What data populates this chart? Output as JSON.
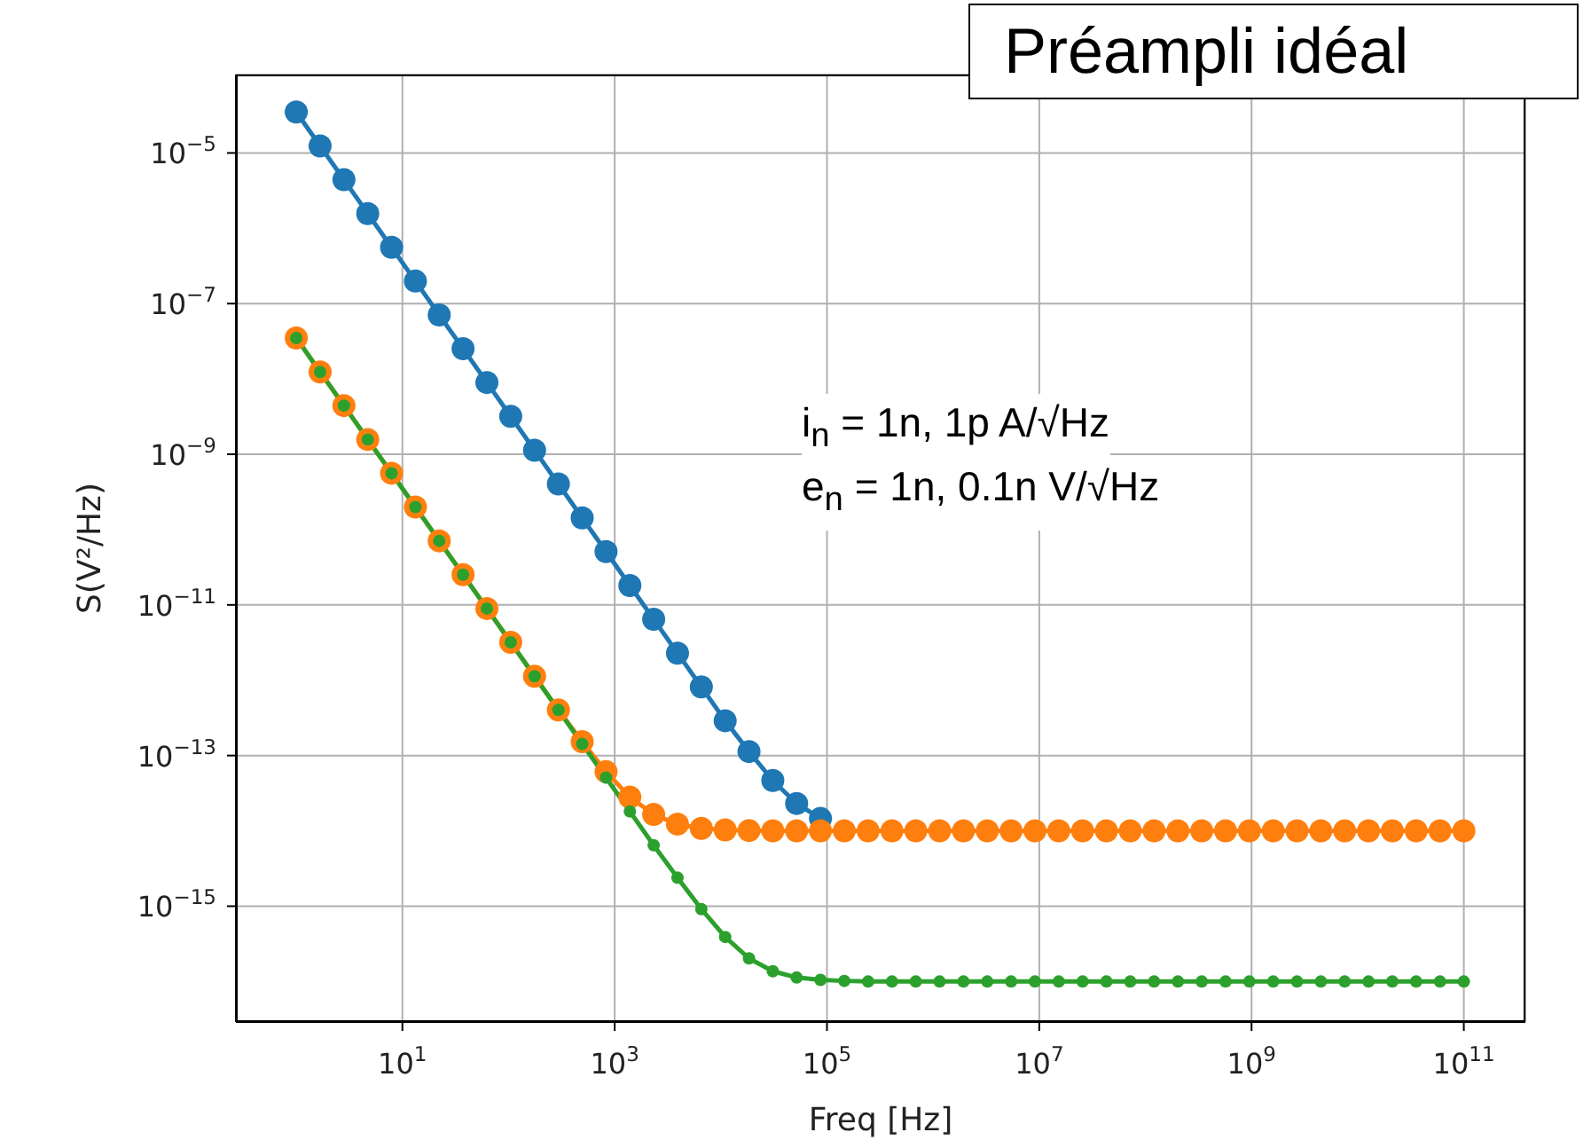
{
  "chart_data": {
    "type": "line",
    "xlabel": "Freq [Hz]",
    "ylabel": "S(V²/Hz)",
    "log": "xy",
    "grid": true,
    "marker": "circle",
    "line_style": "solid",
    "annotations": [
      "Préampli idéal",
      "i$_{n}$ = 1n, 1p A/√Hz",
      "e$_{n}$ = 1n, 0.1n V/√Hz"
    ],
    "xlim": [
      0.27,
      380000000000.0
    ],
    "ylim": [
      2.9e-17,
      0.00011
    ],
    "xticks": [
      {
        "value": 10,
        "label": "10$^{1}$"
      },
      {
        "value": 1000,
        "label": "10$^{3}$"
      },
      {
        "value": 100000,
        "label": "10$^{5}$"
      },
      {
        "value": 10000000,
        "label": "10$^{7}$"
      },
      {
        "value": 1000000000,
        "label": "10$^{9}$"
      },
      {
        "value": 100000000000,
        "label": "10$^{11}$"
      }
    ],
    "yticks": [
      {
        "value": 1e-05,
        "label": "10$^{−5}$"
      },
      {
        "value": 1e-07,
        "label": "10$^{−7}$"
      },
      {
        "value": 1e-09,
        "label": "10$^{−9}$"
      },
      {
        "value": 1e-11,
        "label": "10$^{−11}$"
      },
      {
        "value": 1e-13,
        "label": "10$^{−13}$"
      },
      {
        "value": 1e-15,
        "label": "10$^{−15}$"
      }
    ],
    "x": [
      1,
      1.677,
      2.812,
      4.715,
      7.907,
      13.26,
      22.23,
      37.28,
      62.51,
      104.8,
      175.8,
      294.8,
      494.2,
      828.8,
      1390,
      2330,
      3907,
      6551,
      10985,
      18421,
      30888,
      51795,
      86851,
      145600,
      244200,
      409500,
      686600,
      1151000,
      1931000,
      3237000,
      5429000,
      9103000,
      15260000,
      25600000,
      42920000,
      71970000,
      120700000,
      202400000,
      339300000,
      569000000,
      954100000,
      1600000000,
      2683000000,
      4498000000,
      7543000000,
      12650000000,
      21210000000,
      35560000000,
      59630000000,
      100000000000
    ],
    "series": [
      {
        "color": "#1f77b4",
        "values": [
          3.5e-05,
          1.24e-05,
          4.43e-06,
          1.57e-06,
          5.6e-07,
          1.99e-07,
          7.08e-08,
          2.52e-08,
          8.96e-09,
          3.19e-09,
          1.13e-09,
          4.03e-10,
          1.43e-10,
          5.1e-11,
          1.81e-11,
          6.45e-12,
          2.29e-12,
          8.16e-13,
          2.9e-13,
          1.13e-13,
          4.67e-14,
          2.31e-14,
          1.46e-14,
          null,
          null,
          null,
          null,
          null,
          null,
          null,
          null,
          null,
          null,
          null,
          null,
          null,
          null,
          null,
          null,
          null,
          null,
          null,
          null,
          null,
          null,
          null,
          null,
          null,
          null,
          null
        ]
      },
      {
        "color": "#ff7f0e",
        "values": [
          3.5e-08,
          1.24e-08,
          4.43e-09,
          1.57e-09,
          5.6e-10,
          1.99e-10,
          7.08e-11,
          2.52e-11,
          8.96e-12,
          3.19e-12,
          1.13e-12,
          4.03e-13,
          1.53e-13,
          6.1e-14,
          2.81e-14,
          1.65e-14,
          1.23e-14,
          1.08e-14,
          1.03e-14,
          1.01e-14,
          1e-14,
          1e-14,
          1e-14,
          1e-14,
          1e-14,
          1e-14,
          1e-14,
          1e-14,
          1e-14,
          1e-14,
          1e-14,
          1e-14,
          1e-14,
          1e-14,
          1e-14,
          1e-14,
          1e-14,
          1e-14,
          1e-14,
          1e-14,
          1e-14,
          1e-14,
          1e-14,
          1e-14,
          1e-14,
          1e-14,
          1e-14,
          1e-14,
          1e-14,
          1e-14
        ]
      },
      {
        "color": "#2ca02c",
        "values": [
          3.5e-08,
          1.24e-08,
          4.43e-09,
          1.57e-09,
          5.6e-10,
          1.99e-10,
          7.08e-11,
          2.52e-11,
          8.96e-12,
          3.19e-12,
          1.13e-12,
          4.03e-13,
          1.43e-13,
          5.1e-14,
          1.81e-14,
          6.45e-15,
          2.39e-15,
          9.16e-16,
          3.9e-16,
          2.03e-16,
          1.37e-16,
          1.13e-16,
          1.05e-16,
          1.02e-16,
          1e-16,
          1e-16,
          1e-16,
          1e-16,
          1e-16,
          1e-16,
          1e-16,
          1e-16,
          1e-16,
          1e-16,
          1e-16,
          1e-16,
          1e-16,
          1e-16,
          1e-16,
          1e-16,
          1e-16,
          1e-16,
          1e-16,
          1e-16,
          1e-16,
          1e-16,
          1e-16,
          1e-16,
          1e-16,
          1e-16
        ]
      }
    ]
  }
}
